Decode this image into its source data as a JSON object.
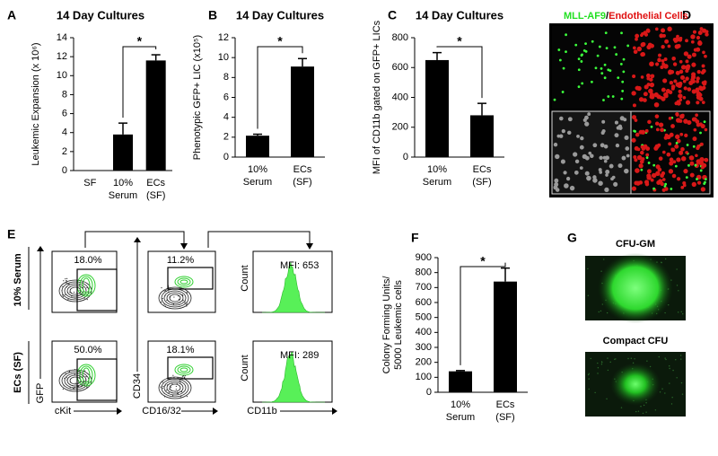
{
  "chart_data": [
    {
      "type": "bar",
      "panel": "A",
      "title": "14 Day Cultures",
      "y_label": [
        "Leukemic Expansion (x 10⁶)"
      ],
      "categories": [
        [
          "SF"
        ],
        [
          "10%",
          "Serum"
        ],
        [
          "ECs",
          "(SF)"
        ]
      ],
      "values": [
        0,
        3.8,
        11.6
      ],
      "errors": [
        null,
        1.2,
        0.6
      ],
      "color": "#000000",
      "ylim": [
        0,
        14
      ],
      "yticks": [
        0,
        2,
        4,
        6,
        8,
        10,
        12,
        14
      ],
      "annotation": "*"
    },
    {
      "type": "bar",
      "panel": "B",
      "title": "14 Day Cultures",
      "y_label": [
        "Phenotypic GFP+ LIC (x10⁵)"
      ],
      "categories": [
        [
          "10%",
          "Serum"
        ],
        [
          "ECs",
          "(SF)"
        ]
      ],
      "values": [
        2.15,
        9.1
      ],
      "errors": [
        0.15,
        0.8
      ],
      "color": "#000000",
      "ylim": [
        0,
        12
      ],
      "yticks": [
        0,
        2,
        4,
        6,
        8,
        10,
        12
      ],
      "annotation": "*"
    },
    {
      "type": "bar",
      "panel": "C",
      "title": "14 Day Cultures",
      "y_label": [
        "MFI of CD11b gated on GFP+ LICs"
      ],
      "categories": [
        [
          "10%",
          "Serum"
        ],
        [
          "ECs",
          "(SF)"
        ]
      ],
      "values": [
        650,
        280
      ],
      "errors": [
        50,
        80
      ],
      "color": "#000000",
      "ylim": [
        0,
        800
      ],
      "yticks": [
        0,
        200,
        400,
        600,
        800
      ],
      "annotation": "*"
    },
    {
      "type": "bar",
      "panel": "F",
      "y_label": [
        "Colony Forming Units/",
        "5000 Leukemic cells"
      ],
      "categories": [
        [
          "10%",
          "Serum"
        ],
        [
          "ECs",
          "(SF)"
        ]
      ],
      "values": [
        140,
        740
      ],
      "errors": [
        5,
        90
      ],
      "color": "#000000",
      "ylim": [
        0,
        900
      ],
      "yticks": [
        0,
        100,
        200,
        300,
        400,
        500,
        600,
        700,
        800,
        900
      ],
      "annotation": "*"
    }
  ],
  "panel_d": {
    "label": "D",
    "legend": [
      "MLL-AF9",
      "/",
      "Endothelial Cells"
    ]
  },
  "panel_e": {
    "label": "E",
    "rows": [
      "10% Serum",
      "ECs (SF)"
    ],
    "gates": [
      [
        "18.0%",
        "11.2%",
        "MFI: 653"
      ],
      [
        "50.0%",
        "18.1%",
        "MFI: 289"
      ]
    ],
    "x_labels": [
      "cKit",
      "CD16/32",
      "CD11b"
    ],
    "y_labels": [
      "GFP",
      "CD34",
      "Count"
    ]
  },
  "panel_g": {
    "label": "G",
    "images": [
      "CFU-GM",
      "Compact CFU"
    ]
  }
}
